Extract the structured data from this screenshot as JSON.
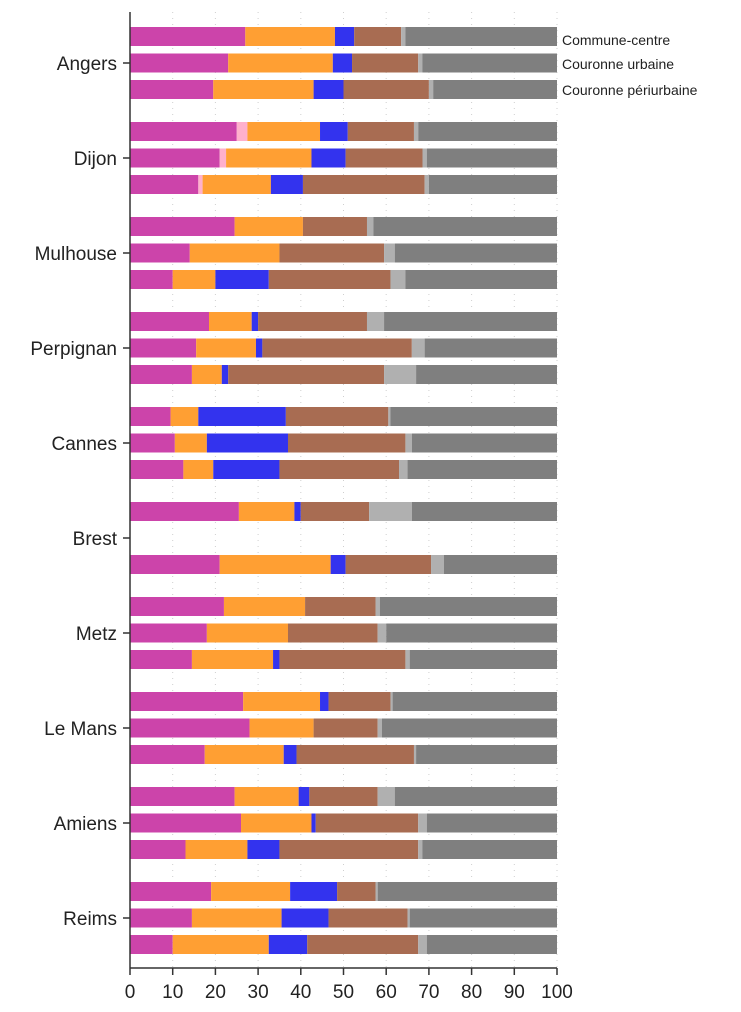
{
  "chart_data": {
    "type": "bar",
    "orientation": "horizontal",
    "stacked": true,
    "xlim": [
      0,
      100
    ],
    "xticks": [
      "0",
      "10",
      "20",
      "30",
      "40",
      "50",
      "60",
      "70",
      "80",
      "90",
      "100"
    ],
    "grid": true,
    "row_labels": [
      "Commune-centre",
      "Couronne urbaine",
      "Couronne périurbaine"
    ],
    "segment_colors": [
      "#cc44aa",
      "#ffb0cc",
      "#ff9f33",
      "#3333ee",
      "#a86c52",
      "#b0b0b0",
      "#7f7f7f"
    ],
    "cities": [
      {
        "name": "Angers",
        "rows": [
          [
            27,
            0,
            21,
            4.5,
            11,
            1,
            35.5
          ],
          [
            23,
            0,
            24.5,
            4.5,
            15.5,
            1,
            31.5
          ],
          [
            19.5,
            0,
            23.5,
            7,
            20,
            1,
            29
          ]
        ]
      },
      {
        "name": "Dijon",
        "rows": [
          [
            25,
            2.5,
            17,
            6.5,
            15.5,
            1,
            32.5
          ],
          [
            21,
            1.5,
            20,
            8,
            18,
            1,
            30.5
          ],
          [
            16,
            1,
            16,
            7.5,
            28.5,
            1,
            30
          ]
        ]
      },
      {
        "name": "Mulhouse",
        "rows": [
          [
            24.5,
            0,
            16,
            0,
            15,
            1.5,
            43
          ],
          [
            14,
            0,
            21,
            0,
            24.5,
            2.5,
            38
          ],
          [
            10,
            0,
            10,
            12.5,
            28.5,
            3.5,
            35.5
          ]
        ]
      },
      {
        "name": "Perpignan",
        "rows": [
          [
            18.5,
            0,
            10,
            1.5,
            25.5,
            4,
            40.5
          ],
          [
            15.5,
            0,
            14,
            1.5,
            35,
            3,
            31
          ],
          [
            14.5,
            0,
            7,
            1.5,
            36.5,
            7.5,
            33
          ]
        ]
      },
      {
        "name": "Cannes",
        "rows": [
          [
            9.5,
            0,
            6.5,
            20.5,
            24,
            0.5,
            39
          ],
          [
            10.5,
            0,
            7.5,
            19,
            27.5,
            1.5,
            34
          ],
          [
            12.5,
            0,
            7,
            15.5,
            28,
            2,
            35
          ]
        ]
      },
      {
        "name": "Brest",
        "rows": [
          [
            25.5,
            0,
            13,
            1.5,
            16,
            10,
            34
          ],
          [
            0,
            0,
            0,
            0,
            0,
            0,
            0
          ],
          [
            21,
            0,
            26,
            3.5,
            20,
            3,
            26.5
          ]
        ]
      },
      {
        "name": "Metz",
        "rows": [
          [
            22,
            0,
            19,
            0,
            16.5,
            1,
            41.5
          ],
          [
            18,
            0,
            19,
            0,
            21,
            2,
            40
          ],
          [
            14.5,
            0,
            19,
            1.5,
            29.5,
            1,
            34.5
          ]
        ]
      },
      {
        "name": "Le Mans",
        "rows": [
          [
            26.5,
            0,
            18,
            2,
            14.5,
            0.5,
            38.5
          ],
          [
            28,
            0,
            15,
            0,
            15,
            1,
            41
          ],
          [
            17.5,
            0,
            18.5,
            3,
            27.5,
            0.5,
            33
          ]
        ]
      },
      {
        "name": "Amiens",
        "rows": [
          [
            24.5,
            0,
            15,
            2.5,
            16,
            4,
            38
          ],
          [
            26,
            0,
            16.5,
            1,
            24,
            2,
            30.5
          ],
          [
            13,
            0,
            14.5,
            7.5,
            32.5,
            1,
            31.5
          ]
        ]
      },
      {
        "name": "Reims",
        "rows": [
          [
            19,
            0,
            18.5,
            11,
            9,
            0.5,
            42
          ],
          [
            14.5,
            0,
            21,
            11,
            18.5,
            0.5,
            34.5
          ],
          [
            10,
            0,
            22.5,
            9,
            26,
            2,
            30.5
          ]
        ]
      }
    ]
  }
}
